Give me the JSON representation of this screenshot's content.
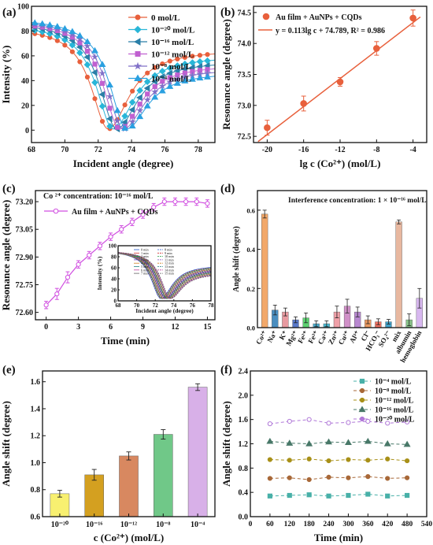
{
  "chart_data": [
    {
      "panel": "(a)",
      "type": "line",
      "xlabel": "Incident angle (degree)",
      "ylabel": "Intensity (%)",
      "xlim": [
        68,
        79
      ],
      "ylim": [
        -10,
        100
      ],
      "xticks": [
        "68",
        "70",
        "72",
        "74",
        "76",
        "78"
      ],
      "yticks": [
        "0",
        "20",
        "40",
        "60",
        "80",
        "100"
      ],
      "legend_position": "top-right",
      "series": [
        {
          "name": "0    mol/L",
          "color": "#e8603c",
          "marker": "circle",
          "min_x": 72.6,
          "start_y": 84,
          "end_y": 65
        },
        {
          "name": "10⁻²⁰ mol/L",
          "color": "#29b6d8",
          "marker": "diamond",
          "min_x": 72.9,
          "start_y": 86,
          "end_y": 60
        },
        {
          "name": "10⁻¹⁶ mol/L",
          "color": "#2a7fa8",
          "marker": "triangle-left",
          "min_x": 73.1,
          "start_y": 88,
          "end_y": 56
        },
        {
          "name": "10⁻¹² mol/L",
          "color": "#c060d0",
          "marker": "square",
          "min_x": 73.3,
          "start_y": 89,
          "end_y": 53
        },
        {
          "name": "10⁻⁸ mol/L",
          "color": "#8070c8",
          "marker": "star",
          "min_x": 73.5,
          "start_y": 90,
          "end_y": 50
        },
        {
          "name": "10⁻⁴ mol/L",
          "color": "#2aa0e0",
          "marker": "triangle-up",
          "min_x": 73.7,
          "start_y": 91,
          "end_y": 47
        }
      ]
    },
    {
      "panel": "(b)",
      "type": "scatter",
      "xlabel": "lg c (Co²⁺) (mol/L)",
      "ylabel": "Resonance angle (degree)",
      "xlim": [
        -21.5,
        -2.5
      ],
      "ylim": [
        72.4,
        74.6
      ],
      "xticks": [
        "-20",
        "-16",
        "-12",
        "-8",
        "-4"
      ],
      "yticks": [
        "72.5",
        "73.0",
        "73.5",
        "74.0",
        "74.5"
      ],
      "legend": [
        "Au film + AuNPs + CQDs",
        "y = 0.113lg c + 74.789, R² = 0.986"
      ],
      "x": [
        -20,
        -16,
        -12,
        -8,
        -4
      ],
      "y": [
        72.64,
        73.03,
        73.38,
        73.92,
        74.41
      ],
      "err": [
        0.12,
        0.12,
        0.07,
        0.11,
        0.13
      ],
      "fit": {
        "slope": 0.113,
        "intercept": 74.789
      },
      "color": "#e8603c"
    },
    {
      "panel": "(c)",
      "type": "line",
      "annotation": "Co ²⁺ concentration: 10⁻¹⁶ mol/L",
      "xlabel": "Time (min)",
      "ylabel": "Resonance angle (degree)",
      "xlim": [
        -1,
        15.7
      ],
      "ylim": [
        72.56,
        73.26
      ],
      "xticks": [
        "0",
        "3",
        "6",
        "9",
        "12",
        "15"
      ],
      "yticks": [
        "72.60",
        "72.75",
        "72.90",
        "73.05",
        "73.20"
      ],
      "series": [
        {
          "name": "Au film + AuNPs + CQDs",
          "color": "#d04ee0",
          "x": [
            0,
            1,
            2,
            3,
            4,
            5,
            6,
            7,
            8,
            9,
            10,
            11,
            12,
            13,
            14,
            15
          ],
          "y": [
            72.64,
            72.7,
            72.79,
            72.86,
            72.91,
            72.96,
            73.01,
            73.05,
            73.09,
            73.13,
            73.17,
            73.2,
            73.2,
            73.2,
            73.2,
            73.19
          ],
          "err": [
            0.02,
            0.03,
            0.03,
            0.02,
            0.02,
            0.02,
            0.02,
            0.02,
            0.02,
            0.02,
            0.02,
            0.02,
            0.02,
            0.02,
            0.02,
            0.02
          ]
        }
      ],
      "inset": {
        "type": "line",
        "xlabel": "Incident angle (degree)",
        "ylabel": "Intensity (%)",
        "xlim": [
          68,
          78
        ],
        "ylim": [
          0,
          100
        ],
        "xticks": [
          "68",
          "70",
          "72",
          "74",
          "76",
          "78"
        ],
        "yticks": [
          "0",
          "20",
          "40",
          "60",
          "80",
          "100"
        ],
        "legend_col1": [
          "0 min",
          "1 min",
          "2 min",
          "3 min",
          "4 min",
          "5 min",
          "6 min",
          "7 min"
        ],
        "legend_col2": [
          "8 min",
          "9 min",
          "10 min",
          "11 min",
          "12 min",
          "13 min",
          "14 min",
          "15 min"
        ],
        "curve_count": 16
      }
    },
    {
      "panel": "(d)",
      "type": "bar",
      "annotation": "Interference concentration: 1 × 10⁻¹⁶ mol/L",
      "ylabel": "Angle shift (degree)",
      "ylim": [
        0,
        0.7
      ],
      "yticks": [
        "0.0",
        "0.2",
        "0.4",
        "0.6"
      ],
      "categories": [
        "Co²⁺",
        "Na⁺",
        "K⁺",
        "Mg²⁺",
        "Fe²⁺",
        "Fe³⁺",
        "Ca²⁺",
        "Zn²⁺",
        "Cu²⁺",
        "Al³⁺",
        "Cl⁻",
        "HCO₃⁻",
        "SO₄²⁻",
        "mix",
        "albumin",
        "hemoglobin"
      ],
      "values": [
        0.58,
        0.09,
        0.08,
        0.04,
        0.05,
        0.02,
        0.02,
        0.08,
        0.11,
        0.08,
        0.04,
        0.03,
        0.03,
        0.54,
        0.04,
        0.15
      ],
      "err": [
        0.02,
        0.025,
        0.02,
        0.015,
        0.025,
        0.015,
        0.015,
        0.03,
        0.035,
        0.025,
        0.02,
        0.015,
        0.012,
        0.01,
        0.03,
        0.05
      ],
      "colors": [
        "#f2a86a",
        "#4a8ec0",
        "#e89aa0",
        "#5878c8",
        "#5cd070",
        "#4aa8c8",
        "#4ab8d0",
        "#f0a0a8",
        "#d090c8",
        "#b888d0",
        "#e89860",
        "#f07060",
        "#40a0c8",
        "#e8b8a0",
        "#88c088",
        "#d8b8f0"
      ]
    },
    {
      "panel": "(e)",
      "type": "bar",
      "xlabel": "c (Co²⁺) (mol/L)",
      "ylabel": "Angle shift (degree)",
      "ylim": [
        0.6,
        1.68
      ],
      "yticks": [
        "0.6",
        "0.8",
        "1.0",
        "1.2",
        "1.4",
        "1.6"
      ],
      "categories": [
        "10⁻²⁰",
        "10⁻¹⁶",
        "10⁻¹²",
        "10⁻⁸",
        "10⁻⁴"
      ],
      "values": [
        0.77,
        0.91,
        1.05,
        1.21,
        1.56
      ],
      "err": [
        0.025,
        0.04,
        0.03,
        0.035,
        0.025
      ],
      "colors": [
        "#f8f070",
        "#d4a020",
        "#d88860",
        "#70c888",
        "#d8b0e8"
      ]
    },
    {
      "panel": "(f)",
      "type": "line",
      "xlabel": "Time (min)",
      "ylabel": "Angle shift (degree)",
      "xlim": [
        0,
        540
      ],
      "ylim": [
        0,
        2.4
      ],
      "xticks": [
        "0",
        "60",
        "120",
        "180",
        "240",
        "300",
        "360",
        "420",
        "480",
        "540"
      ],
      "yticks": [
        "0.0",
        "0.4",
        "0.8",
        "1.2",
        "1.6",
        "2.0",
        "2.4"
      ],
      "legend_position": "top-right",
      "x": [
        60,
        120,
        180,
        240,
        300,
        360,
        420,
        480
      ],
      "series": [
        {
          "name": "10⁻⁴   mol/L",
          "color": "#48b0a8",
          "marker": "square",
          "y": [
            0.34,
            0.35,
            0.36,
            0.34,
            0.35,
            0.37,
            0.34,
            0.35
          ]
        },
        {
          "name": "10⁻⁸   mol/L",
          "color": "#a86838",
          "marker": "circle",
          "y": [
            0.63,
            0.64,
            0.61,
            0.65,
            0.64,
            0.66,
            0.63,
            0.64
          ]
        },
        {
          "name": "10⁻¹² mol/L",
          "color": "#a89018",
          "marker": "circle",
          "y": [
            0.94,
            0.93,
            0.95,
            0.92,
            0.94,
            0.93,
            0.95,
            0.92
          ]
        },
        {
          "name": "10⁻¹⁶ mol/L",
          "color": "#487868",
          "marker": "triangle",
          "y": [
            1.24,
            1.21,
            1.2,
            1.23,
            1.22,
            1.24,
            1.2,
            1.19
          ]
        },
        {
          "name": "10⁻²⁰ mol/L",
          "color": "#b078d8",
          "marker": "circle",
          "y": [
            1.53,
            1.57,
            1.6,
            1.54,
            1.55,
            1.57,
            1.54,
            1.56
          ]
        }
      ]
    }
  ]
}
